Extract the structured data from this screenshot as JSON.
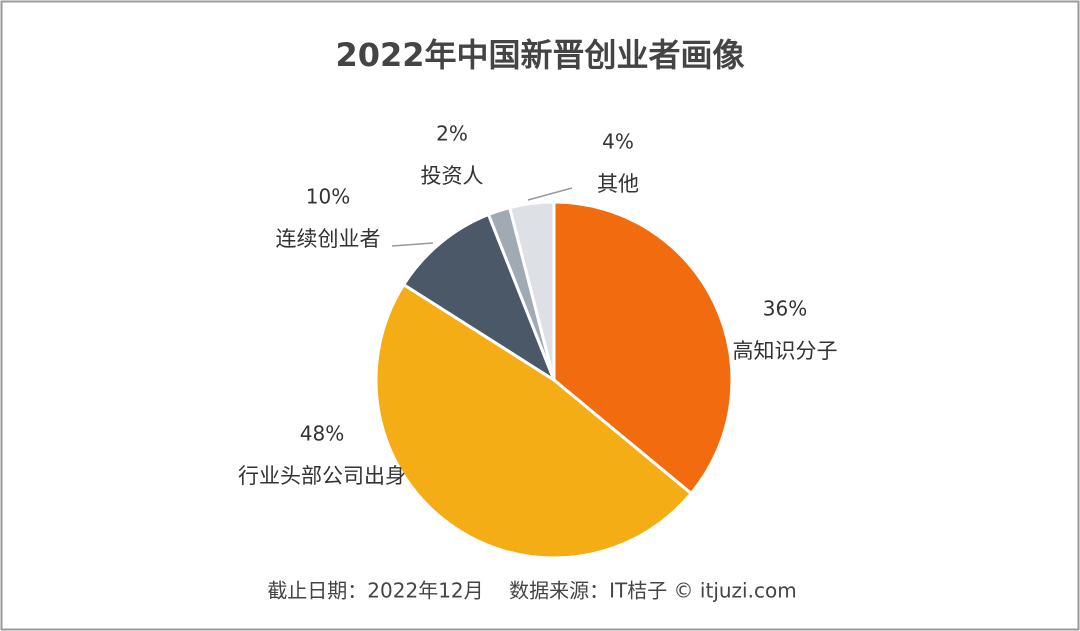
{
  "chart_data": {
    "type": "pie",
    "title": "2022年中国新晋创业者画像",
    "categories": [
      "高知识分子",
      "行业头部公司出身",
      "连续创业者",
      "投资人",
      "其他"
    ],
    "values": [
      36,
      48,
      10,
      2,
      4
    ],
    "value_labels": [
      "36%",
      "48%",
      "10%",
      "2%",
      "4%"
    ],
    "colors": [
      "#f26b0f",
      "#f5ad15",
      "#4a5868",
      "#a0aab4",
      "#dde0e4"
    ],
    "footer": "截止日期：2022年12月    数据来源：IT桔子 © itjuzi.com"
  }
}
